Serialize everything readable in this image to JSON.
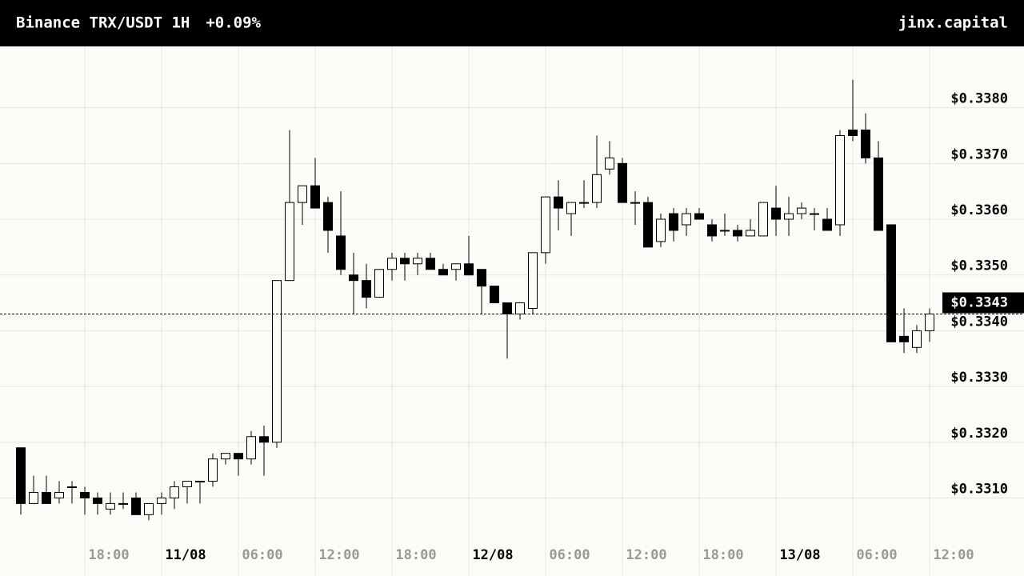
{
  "chart_data": {
    "type": "candlestick",
    "title": "Binance TRX/USDT 1H",
    "change": "+0.09%",
    "source": "jinx.capital",
    "up_color": "#fdfbf7",
    "down_color": "#000000",
    "grid": true,
    "categories": [
      null,
      null,
      null,
      null,
      null,
      "18:00",
      null,
      null,
      null,
      null,
      null,
      "11/08",
      null,
      null,
      null,
      null,
      null,
      "06:00",
      null,
      null,
      null,
      null,
      null,
      "12:00",
      null,
      null,
      null,
      null,
      null,
      "18:00",
      null,
      null,
      null,
      null,
      null,
      "12/08",
      null,
      null,
      null,
      null,
      null,
      "06:00",
      null,
      null,
      null,
      null,
      null,
      "12:00",
      null,
      null,
      null,
      null,
      null,
      "18:00",
      null,
      null,
      null,
      null,
      null,
      "13/08",
      null,
      null,
      null,
      null,
      null,
      "06:00",
      null,
      null,
      null,
      null,
      null,
      "12:00"
    ],
    "open": [
      0.3319,
      0.3309,
      0.3311,
      0.331,
      0.3312,
      0.3311,
      0.331,
      0.3308,
      0.3309,
      0.331,
      0.3307,
      0.3309,
      0.331,
      0.3312,
      0.3313,
      0.3313,
      0.3317,
      0.3318,
      0.3317,
      0.3321,
      0.332,
      0.3349,
      0.3363,
      0.3366,
      0.3363,
      0.3357,
      0.335,
      0.3349,
      0.3346,
      0.3351,
      0.3353,
      0.3352,
      0.3353,
      0.3351,
      0.3351,
      0.3352,
      0.3351,
      0.3348,
      0.3345,
      0.3343,
      0.3344,
      0.3354,
      0.3364,
      0.3361,
      0.3363,
      0.3363,
      0.3369,
      0.337,
      0.3363,
      0.3363,
      0.3356,
      0.3361,
      0.3359,
      0.3361,
      0.3359,
      0.3358,
      0.3358,
      0.3357,
      0.3357,
      0.3362,
      0.336,
      0.3361,
      0.3361,
      0.336,
      0.3359,
      0.3376,
      0.3376,
      0.3371,
      0.3359,
      0.3339,
      0.3337,
      0.334
    ],
    "high": [
      0.3319,
      0.3314,
      0.3314,
      0.3313,
      0.3313,
      0.3312,
      0.3311,
      0.3311,
      0.3311,
      0.3311,
      0.3309,
      0.3311,
      0.3313,
      0.3313,
      0.3313,
      0.3318,
      0.3318,
      0.3318,
      0.3322,
      0.3323,
      0.3349,
      0.3376,
      0.3366,
      0.3371,
      0.3364,
      0.3365,
      0.3354,
      0.3352,
      0.3351,
      0.3354,
      0.3354,
      0.3354,
      0.3354,
      0.3352,
      0.3352,
      0.3357,
      0.3351,
      0.3348,
      0.3345,
      0.3345,
      0.3354,
      0.3364,
      0.3367,
      0.3363,
      0.3367,
      0.3375,
      0.3374,
      0.3371,
      0.3365,
      0.3364,
      0.3361,
      0.3362,
      0.3362,
      0.3362,
      0.336,
      0.3361,
      0.3359,
      0.336,
      0.3363,
      0.3366,
      0.3364,
      0.3363,
      0.3362,
      0.3362,
      0.3376,
      0.3385,
      0.3379,
      0.3374,
      0.3359,
      0.3344,
      0.3341,
      0.3344
    ],
    "low": [
      0.3307,
      0.3309,
      0.3309,
      0.3309,
      0.3309,
      0.3307,
      0.3307,
      0.3307,
      0.3308,
      0.3307,
      0.3306,
      0.3307,
      0.3308,
      0.3309,
      0.3309,
      0.3312,
      0.3316,
      0.3314,
      0.3316,
      0.3314,
      0.3319,
      0.3349,
      0.3359,
      0.3362,
      0.3354,
      0.335,
      0.3343,
      0.3344,
      0.3346,
      0.3349,
      0.3349,
      0.335,
      0.3351,
      0.335,
      0.3349,
      0.335,
      0.3343,
      0.3345,
      0.3335,
      0.3342,
      0.3343,
      0.3352,
      0.3358,
      0.3357,
      0.3362,
      0.3362,
      0.3368,
      0.3363,
      0.3359,
      0.3355,
      0.3355,
      0.3356,
      0.3357,
      0.336,
      0.3356,
      0.3357,
      0.3356,
      0.3357,
      0.3357,
      0.3357,
      0.3357,
      0.336,
      0.3358,
      0.3358,
      0.3357,
      0.3374,
      0.337,
      0.3358,
      0.3338,
      0.3336,
      0.3336,
      0.3338
    ],
    "close": [
      0.3309,
      0.3311,
      0.3309,
      0.3311,
      0.3312,
      0.331,
      0.3309,
      0.3309,
      0.3309,
      0.3307,
      0.3309,
      0.331,
      0.3312,
      0.3313,
      0.3313,
      0.3317,
      0.3318,
      0.3317,
      0.3321,
      0.332,
      0.3349,
      0.3363,
      0.3366,
      0.3362,
      0.3358,
      0.3351,
      0.3349,
      0.3346,
      0.3351,
      0.3353,
      0.3352,
      0.3353,
      0.3351,
      0.335,
      0.3352,
      0.335,
      0.3348,
      0.3345,
      0.3343,
      0.3345,
      0.3354,
      0.3364,
      0.3362,
      0.3363,
      0.3363,
      0.3368,
      0.3371,
      0.3363,
      0.3363,
      0.3355,
      0.336,
      0.3358,
      0.3361,
      0.336,
      0.3357,
      0.3358,
      0.3357,
      0.3358,
      0.3363,
      0.336,
      0.3361,
      0.3362,
      0.3361,
      0.3358,
      0.3375,
      0.3375,
      0.3371,
      0.3358,
      0.3338,
      0.3338,
      0.334,
      0.3343
    ],
    "ylim": [
      0.3296,
      0.3391
    ],
    "yticks": [
      {
        "value": 0.331,
        "label": "$0.3310"
      },
      {
        "value": 0.332,
        "label": "$0.3320"
      },
      {
        "value": 0.333,
        "label": "$0.3330"
      },
      {
        "value": 0.334,
        "label": "$0.3340"
      },
      {
        "value": 0.335,
        "label": "$0.3350"
      },
      {
        "value": 0.336,
        "label": "$0.3360"
      },
      {
        "value": 0.337,
        "label": "$0.3370"
      },
      {
        "value": 0.338,
        "label": "$0.3380"
      }
    ],
    "last_price": {
      "value": 0.3343,
      "label": "$0.3343"
    }
  }
}
